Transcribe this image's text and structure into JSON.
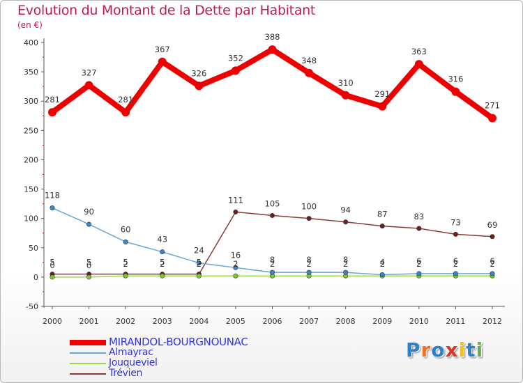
{
  "title": "Evolution du Montant de la Dette par Habitant",
  "subtitle": "(en €)",
  "brand": {
    "name": "Proxiti",
    "letters": [
      "P",
      "r",
      "o",
      "x",
      "i",
      "t",
      "i"
    ],
    "letter_colors": [
      "#2f80c8",
      "#e8742a",
      "#2f80c8",
      "#d23a2a",
      "#f0c020",
      "#2f80c8",
      "#6ab04c"
    ]
  },
  "chart_data": {
    "type": "line",
    "title": "Evolution du Montant de la Dette par Habitant",
    "subtitle": "(en €)",
    "x": [
      "2000",
      "2001",
      "2002",
      "2003",
      "2004",
      "2005",
      "2006",
      "2007",
      "2008",
      "2009",
      "2010",
      "2011",
      "2012"
    ],
    "ylim": [
      -50,
      400
    ],
    "yticks": [
      "-50",
      "0",
      "50",
      "100",
      "150",
      "200",
      "250",
      "300",
      "350",
      "400"
    ],
    "grid": false,
    "legend_position": "bottom-left",
    "series": [
      {
        "name": "MIRANDOL-BOURGNOUNAC",
        "color": "#ee0000",
        "emphasis": "thick",
        "values": [
          281,
          327,
          281,
          367,
          326,
          352,
          388,
          348,
          310,
          291,
          363,
          316,
          271
        ],
        "labels": [
          "281",
          "327",
          "281",
          "367",
          "326",
          "352",
          "388",
          "348",
          "310",
          "291",
          "363",
          "316",
          "271"
        ]
      },
      {
        "name": "Almayrac",
        "color": "#6aa6d8",
        "marker": "#3a86c8",
        "values": [
          118,
          90,
          60,
          43,
          24,
          16,
          8,
          8,
          8,
          4,
          6,
          6,
          6
        ],
        "labels": [
          "118",
          "90",
          "60",
          "43",
          "24",
          "16",
          "8",
          "8",
          "8",
          "4",
          "6",
          "6",
          "6"
        ]
      },
      {
        "name": "Jouqueviel",
        "color": "#9ad84a",
        "marker": "#7cc832",
        "values": [
          0,
          0,
          2,
          2,
          2,
          2,
          2,
          2,
          2,
          2,
          2,
          2,
          2
        ],
        "labels": [
          "0",
          "0",
          "2",
          "2",
          "2",
          "2",
          "2",
          "2",
          "2",
          "2",
          "2",
          "2",
          "2"
        ]
      },
      {
        "name": "Trévien",
        "color": "#8a3a3a",
        "marker": "#6b1f1f",
        "values": [
          5,
          5,
          5,
          5,
          5,
          111,
          105,
          100,
          94,
          87,
          83,
          73,
          69
        ],
        "labels": [
          "5",
          "5",
          "5",
          "5",
          "5",
          "111",
          "105",
          "100",
          "94",
          "87",
          "83",
          "73",
          "69"
        ]
      }
    ]
  }
}
